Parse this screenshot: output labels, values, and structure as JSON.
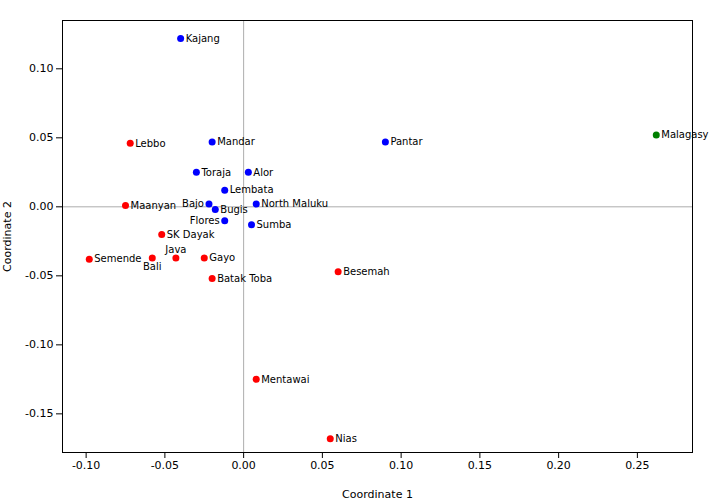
{
  "chart_data": {
    "type": "scatter",
    "xlabel": "Coordinate 1",
    "ylabel": "Coordinate 2",
    "xlim": [
      -0.115,
      0.285
    ],
    "ylim": [
      -0.178,
      0.135
    ],
    "xticks": [
      {
        "value": -0.1,
        "label": "-0.10"
      },
      -0.05,
      {
        "value": 0.0,
        "label": "0.00"
      },
      0.05,
      {
        "value": 0.1,
        "label": "0.10"
      },
      0.15,
      {
        "value": 0.2,
        "label": "0.20"
      },
      0.25
    ],
    "yticks": [
      -0.15,
      {
        "value": -0.1,
        "label": "-0.10"
      },
      -0.05,
      {
        "value": 0.0,
        "label": "0.00"
      },
      0.05,
      {
        "value": 0.1,
        "label": "0.10"
      }
    ],
    "grid": false,
    "points": [
      {
        "name": "Kajang",
        "x": -0.04,
        "y": 0.122,
        "color": "blue"
      },
      {
        "name": "Mandar",
        "x": -0.02,
        "y": 0.047,
        "color": "blue"
      },
      {
        "name": "Toraja",
        "x": -0.03,
        "y": 0.025,
        "color": "blue"
      },
      {
        "name": "Alor",
        "x": 0.003,
        "y": 0.025,
        "color": "blue"
      },
      {
        "name": "Lembata",
        "x": -0.012,
        "y": 0.012,
        "color": "blue"
      },
      {
        "name": "Bajo",
        "x": -0.022,
        "y": 0.002,
        "color": "blue"
      },
      {
        "name": "North Maluku",
        "x": 0.008,
        "y": 0.002,
        "color": "blue"
      },
      {
        "name": "Bugis",
        "x": -0.018,
        "y": -0.002,
        "color": "blue"
      },
      {
        "name": "Flores",
        "x": -0.012,
        "y": -0.01,
        "color": "blue"
      },
      {
        "name": "Sumba",
        "x": 0.005,
        "y": -0.013,
        "color": "blue"
      },
      {
        "name": "Pantar",
        "x": 0.09,
        "y": 0.047,
        "color": "blue"
      },
      {
        "name": "Lebbo",
        "x": -0.072,
        "y": 0.046,
        "color": "red"
      },
      {
        "name": "Maanyan",
        "x": -0.075,
        "y": 0.001,
        "color": "red"
      },
      {
        "name": "SK Dayak",
        "x": -0.052,
        "y": -0.02,
        "color": "red"
      },
      {
        "name": "Semende",
        "x": -0.098,
        "y": -0.038,
        "color": "red"
      },
      {
        "name": "Bali",
        "x": -0.058,
        "y": -0.037,
        "color": "red"
      },
      {
        "name": "Java",
        "x": -0.043,
        "y": -0.037,
        "color": "red"
      },
      {
        "name": "Gayo",
        "x": -0.025,
        "y": -0.037,
        "color": "red"
      },
      {
        "name": "Batak Toba",
        "x": -0.02,
        "y": -0.052,
        "color": "red"
      },
      {
        "name": "Besemah",
        "x": 0.06,
        "y": -0.047,
        "color": "red"
      },
      {
        "name": "Mentawai",
        "x": 0.008,
        "y": -0.125,
        "color": "red"
      },
      {
        "name": "Nias",
        "x": 0.055,
        "y": -0.168,
        "color": "red"
      },
      {
        "name": "Malagasy",
        "x": 0.262,
        "y": 0.052,
        "color": "green"
      }
    ]
  }
}
